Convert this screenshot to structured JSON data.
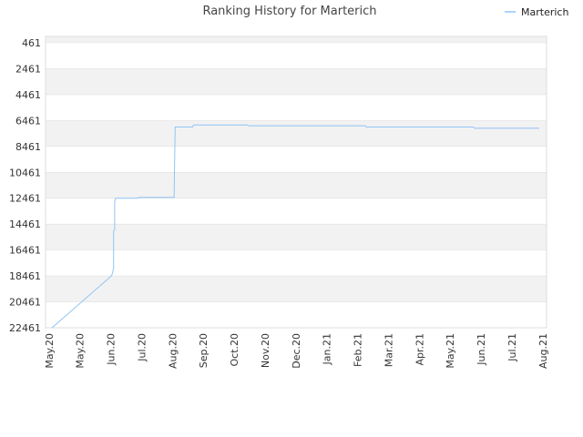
{
  "chart_data": {
    "type": "line",
    "title": "Ranking History for Marterich",
    "xlabel": "",
    "ylabel": "",
    "y_inverted": true,
    "ylim": [
      22461,
      461
    ],
    "yticks": [
      461,
      2461,
      4461,
      6461,
      8461,
      10461,
      12461,
      14461,
      16461,
      18461,
      20461,
      22461
    ],
    "xticks": [
      "May.20",
      "May.20",
      "Jun.20",
      "Jul.20",
      "Aug.20",
      "Sep.20",
      "Oct.20",
      "Nov.20",
      "Dec.20",
      "Jan.21",
      "Feb.21",
      "Mar.21",
      "Apr.21",
      "May.21",
      "Jun.21",
      "Jul.21",
      "Aug.21"
    ],
    "grid": "horizontal alternating bands",
    "legend_position": "top-right",
    "colors": {
      "series": "#90c4f5",
      "band": "#f2f2f2",
      "grid": "#e0e0e0"
    },
    "series": [
      {
        "name": "Marterich",
        "points": [
          {
            "x": "2020-05-07",
            "y": 22461
          },
          {
            "x": "2020-07-01",
            "y": 18461
          },
          {
            "x": "2020-07-02",
            "y": 18250
          },
          {
            "x": "2020-07-03",
            "y": 17850
          },
          {
            "x": "2020-07-03",
            "y": 15000
          },
          {
            "x": "2020-07-04",
            "y": 14900
          },
          {
            "x": "2020-07-04",
            "y": 12700
          },
          {
            "x": "2020-07-05",
            "y": 12461
          },
          {
            "x": "2020-07-25",
            "y": 12461
          },
          {
            "x": "2020-07-26",
            "y": 12400
          },
          {
            "x": "2020-08-28",
            "y": 12400
          },
          {
            "x": "2020-08-29",
            "y": 6961
          },
          {
            "x": "2020-09-14",
            "y": 6961
          },
          {
            "x": "2020-09-15",
            "y": 6800
          },
          {
            "x": "2020-11-04",
            "y": 6800
          },
          {
            "x": "2020-11-05",
            "y": 6861
          },
          {
            "x": "2021-02-21",
            "y": 6861
          },
          {
            "x": "2021-02-22",
            "y": 6961
          },
          {
            "x": "2021-06-01",
            "y": 6961
          },
          {
            "x": "2021-06-02",
            "y": 7061
          },
          {
            "x": "2021-08-01",
            "y": 7061
          }
        ]
      }
    ]
  }
}
